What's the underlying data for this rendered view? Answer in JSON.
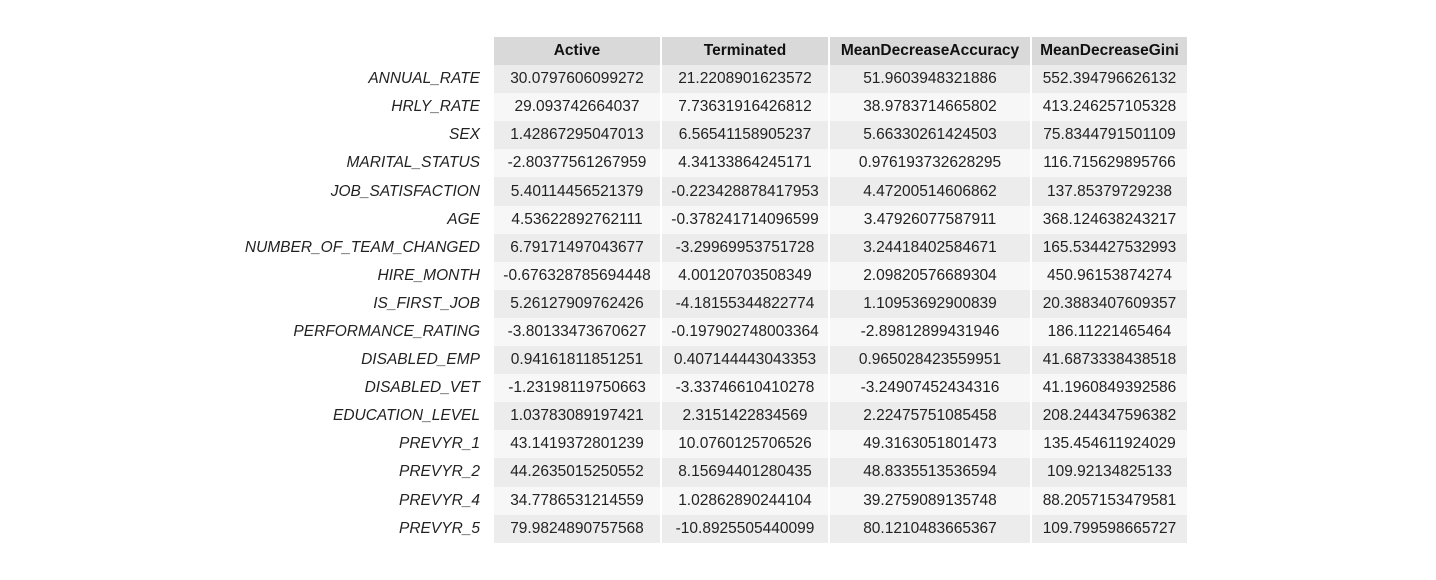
{
  "chart_data": {
    "type": "table",
    "columns": [
      "Active",
      "Terminated",
      "MeanDecreaseAccuracy",
      "MeanDecreaseGini"
    ],
    "rows": [
      {
        "name": "ANNUAL_RATE",
        "values": [
          "30.0797606099272",
          "21.2208901623572",
          "51.9603948321886",
          "552.394796626132"
        ]
      },
      {
        "name": "HRLY_RATE",
        "values": [
          "29.093742664037",
          "7.73631916426812",
          "38.9783714665802",
          "413.246257105328"
        ]
      },
      {
        "name": "SEX",
        "values": [
          "1.42867295047013",
          "6.56541158905237",
          "5.66330261424503",
          "75.8344791501109"
        ]
      },
      {
        "name": "MARITAL_STATUS",
        "values": [
          "-2.80377561267959",
          "4.34133864245171",
          "0.976193732628295",
          "116.715629895766"
        ]
      },
      {
        "name": "JOB_SATISFACTION",
        "values": [
          "5.40114456521379",
          "-0.223428878417953",
          "4.47200514606862",
          "137.85379729238"
        ]
      },
      {
        "name": "AGE",
        "values": [
          "4.53622892762111",
          "-0.378241714096599",
          "3.47926077587911",
          "368.124638243217"
        ]
      },
      {
        "name": "NUMBER_OF_TEAM_CHANGED",
        "values": [
          "6.79171497043677",
          "-3.29969953751728",
          "3.24418402584671",
          "165.534427532993"
        ]
      },
      {
        "name": "HIRE_MONTH",
        "values": [
          "-0.676328785694448",
          "4.00120703508349",
          "2.09820576689304",
          "450.96153874274"
        ]
      },
      {
        "name": "IS_FIRST_JOB",
        "values": [
          "5.26127909762426",
          "-4.18155344822774",
          "1.10953692900839",
          "20.3883407609357"
        ]
      },
      {
        "name": "PERFORMANCE_RATING",
        "values": [
          "-3.80133473670627",
          "-0.197902748003364",
          "-2.89812899431946",
          "186.11221465464"
        ]
      },
      {
        "name": "DISABLED_EMP",
        "values": [
          "0.94161811851251",
          "0.407144443043353",
          "0.965028423559951",
          "41.6873338438518"
        ]
      },
      {
        "name": "DISABLED_VET",
        "values": [
          "-1.23198119750663",
          "-3.33746610410278",
          "-3.24907452434316",
          "41.1960849392586"
        ]
      },
      {
        "name": "EDUCATION_LEVEL",
        "values": [
          "1.03783089197421",
          "2.3151422834569",
          "2.22475751085458",
          "208.244347596382"
        ]
      },
      {
        "name": "PREVYR_1",
        "values": [
          "43.1419372801239",
          "10.0760125706526",
          "49.3163051801473",
          "135.454611924029"
        ]
      },
      {
        "name": "PREVYR_2",
        "values": [
          "44.2635015250552",
          "8.15694401280435",
          "48.8335513536594",
          "109.92134825133"
        ]
      },
      {
        "name": "PREVYR_4",
        "values": [
          "34.7786531214559",
          "1.02862890244104",
          "39.2759089135748",
          "88.2057153479581"
        ]
      },
      {
        "name": "PREVYR_5",
        "values": [
          "79.9824890757568",
          "-10.8925505440099",
          "80.1210483665367",
          "109.799598665727"
        ]
      }
    ],
    "colors": {
      "header_bg": "#d9d9d9",
      "row_odd_bg": "#ececec",
      "row_even_bg": "#f7f7f7"
    }
  }
}
